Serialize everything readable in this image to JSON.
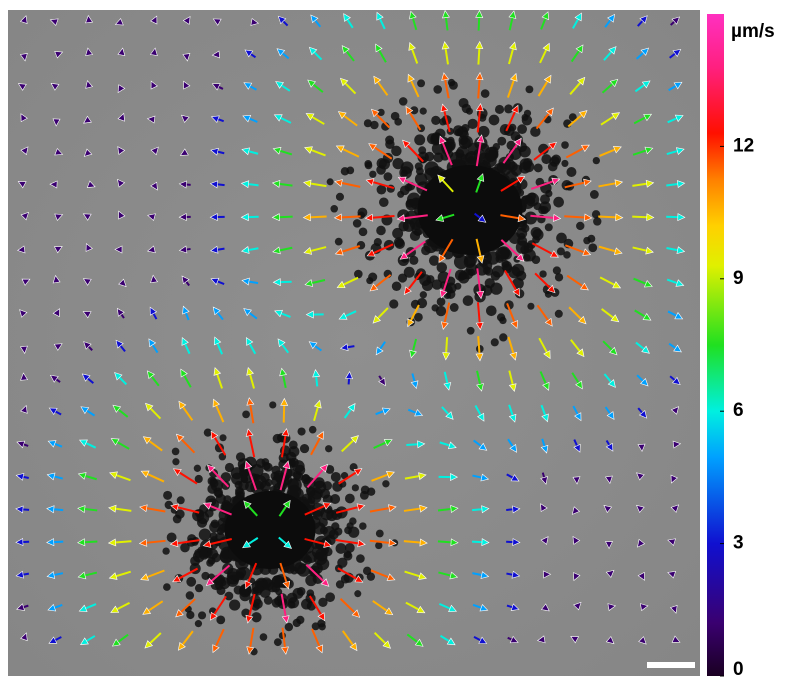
{
  "colorbar": {
    "unit": "µm/s",
    "range": [
      0,
      15
    ],
    "ticks": [
      0,
      3,
      6,
      9,
      12
    ]
  }
}
